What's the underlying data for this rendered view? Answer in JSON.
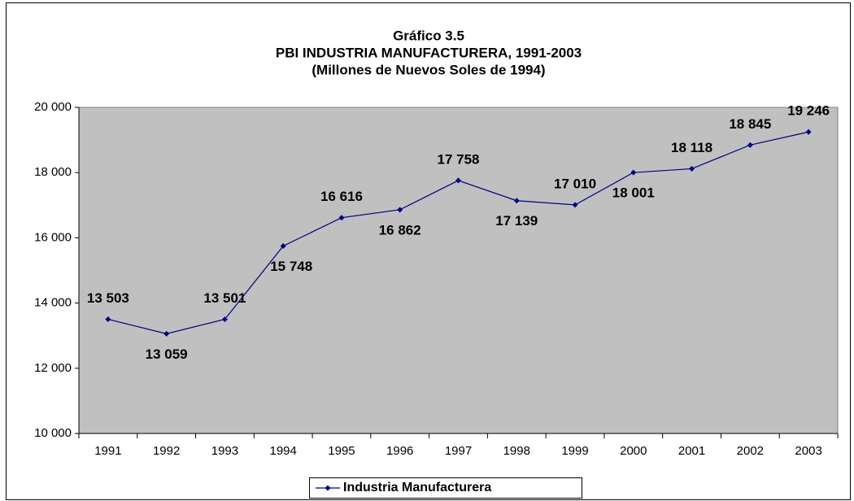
{
  "chart_data": {
    "type": "line",
    "title": [
      "Gráfico 3.5",
      "PBI INDUSTRIA MANUFACTURERA, 1991-2003",
      "(Millones de Nuevos Soles de 1994)"
    ],
    "categories": [
      "1991",
      "1992",
      "1993",
      "1994",
      "1995",
      "1996",
      "1997",
      "1998",
      "1999",
      "2000",
      "2001",
      "2002",
      "2003"
    ],
    "series": [
      {
        "name": "Industria Manufacturera",
        "color": "#000080",
        "values": [
          13503,
          13059,
          13501,
          15748,
          16616,
          16862,
          17758,
          17139,
          17010,
          18001,
          18118,
          18845,
          19246
        ],
        "value_labels": [
          "13 503",
          "13 059",
          "13 501",
          "15 748",
          "16 616",
          "16 862",
          "17 758",
          "17 139",
          "17 010",
          "18 001",
          "18 118",
          "18 845",
          "19 246"
        ]
      }
    ],
    "ylim": [
      10000,
      20000
    ],
    "yticks": [
      {
        "value": 10000,
        "label": "10 000"
      },
      {
        "value": 12000,
        "label": "12 000"
      },
      {
        "value": 14000,
        "label": "14 000"
      },
      {
        "value": 16000,
        "label": "16 000"
      },
      {
        "value": 18000,
        "label": "18 000"
      },
      {
        "value": 20000,
        "label": "20 000"
      }
    ],
    "plot_background": "#c0c0c0",
    "legend": "bottom"
  }
}
